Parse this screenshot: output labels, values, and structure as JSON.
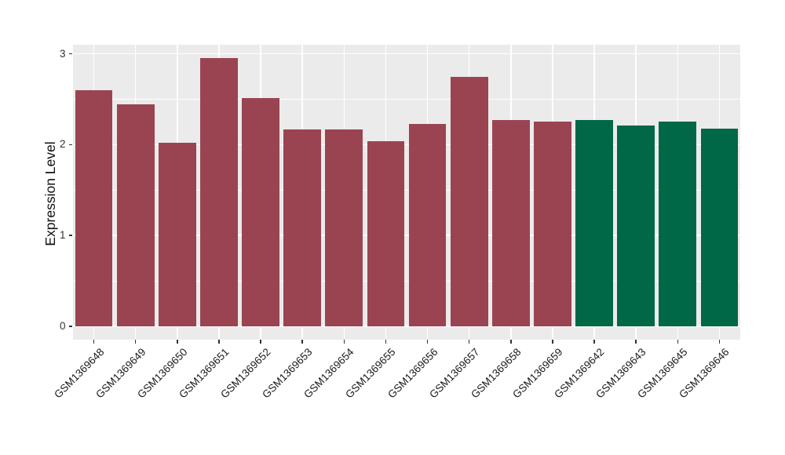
{
  "figure": {
    "ylabel": "Expression Level"
  },
  "chart_data": {
    "type": "bar",
    "title": "",
    "xlabel": "",
    "ylabel": "Expression Level",
    "categories": [
      "GSM1369648",
      "GSM1369649",
      "GSM1369650",
      "GSM1369651",
      "GSM1369652",
      "GSM1369653",
      "GSM1369654",
      "GSM1369655",
      "GSM1369656",
      "GSM1369657",
      "GSM1369658",
      "GSM1369659",
      "GSM1369642",
      "GSM1369643",
      "GSM1369645",
      "GSM1369646"
    ],
    "values": [
      2.6,
      2.44,
      2.02,
      2.95,
      2.51,
      2.17,
      2.17,
      2.04,
      2.23,
      2.75,
      2.27,
      2.25,
      2.27,
      2.21,
      2.25,
      2.18
    ],
    "bar_colors": [
      "#9A4452",
      "#9A4452",
      "#9A4452",
      "#9A4452",
      "#9A4452",
      "#9A4452",
      "#9A4452",
      "#9A4452",
      "#9A4452",
      "#9A4452",
      "#9A4452",
      "#9A4452",
      "#006747",
      "#006747",
      "#006747",
      "#006747"
    ],
    "color_legend": {
      "red_bars": "#9A4452",
      "green_bars": "#006747"
    },
    "yticks": [
      0,
      1,
      2,
      3
    ],
    "ytick_labels": [
      "0",
      "1",
      "2",
      "3"
    ],
    "minor_yticks": [
      0.5,
      1.5,
      2.5
    ],
    "ylim": [
      0,
      3.1
    ],
    "grid": "on",
    "legend_position": "none",
    "panel_background": "#EBEBEB",
    "grid_color": "#FFFFFF",
    "bar_width_fraction": 0.9
  }
}
